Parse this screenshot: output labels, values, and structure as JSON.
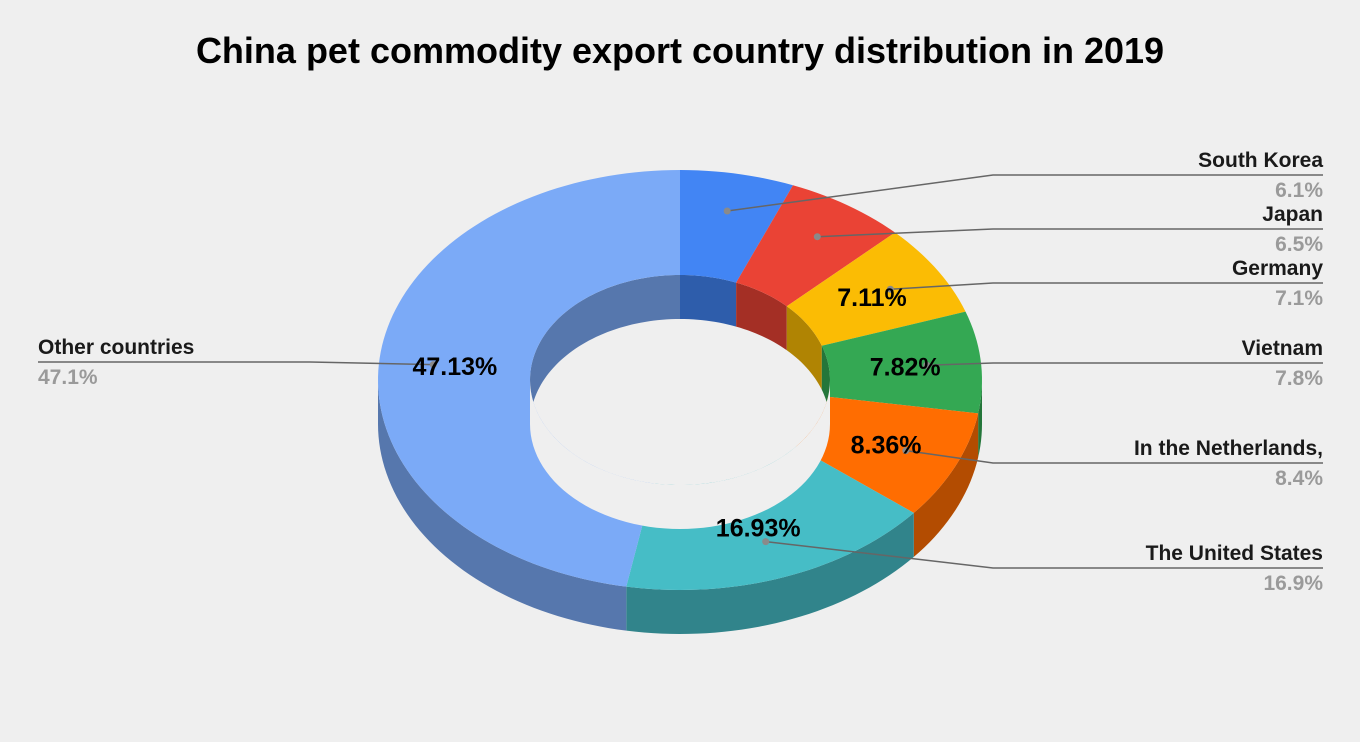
{
  "chart_data": {
    "type": "pie",
    "subtype": "donut-3d",
    "title": "China pet commodity export country distribution in 2019",
    "categories": [
      "South Korea",
      "Japan",
      "Germany",
      "Vietnam",
      "In the Netherlands,",
      "The United States",
      "Other countries"
    ],
    "values": [
      6.1,
      6.5,
      7.11,
      7.82,
      8.36,
      16.93,
      47.13
    ],
    "legend_percents": [
      "6.1%",
      "6.5%",
      "7.1%",
      "7.8%",
      "8.4%",
      "16.9%",
      "47.1%"
    ],
    "slice_labels": [
      "",
      "",
      "7.11%",
      "7.82%",
      "8.36%",
      "16.93%",
      "47.13%"
    ],
    "colors": [
      "#4285f4",
      "#ea4335",
      "#fbbc04",
      "#34a853",
      "#ff6d01",
      "#46bdc6",
      "#7baaf7"
    ],
    "label_side": [
      "right",
      "right",
      "right",
      "right",
      "right",
      "right",
      "left"
    ]
  }
}
